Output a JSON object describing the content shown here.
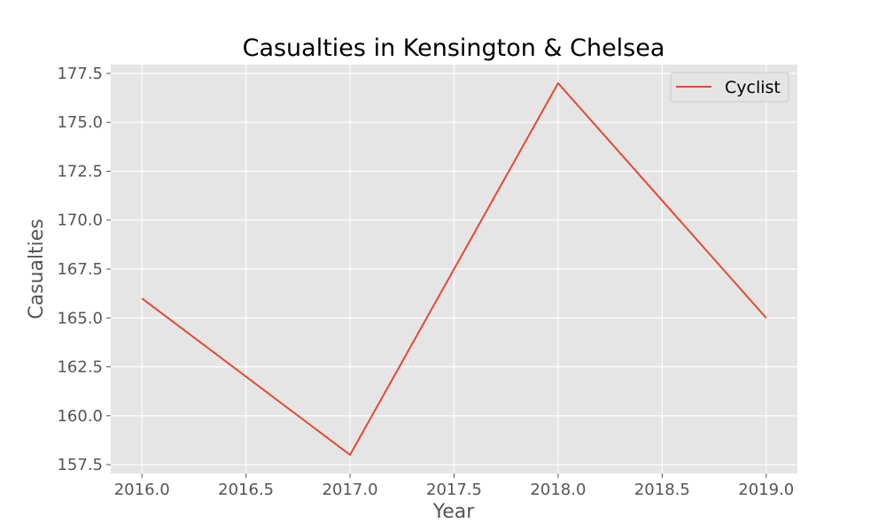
{
  "chart_data": {
    "type": "line",
    "title": "Casualties in Kensington & Chelsea",
    "xlabel": "Year",
    "ylabel": "Casualties",
    "x": [
      2016,
      2017,
      2018,
      2019
    ],
    "series": [
      {
        "name": "Cyclist",
        "values": [
          166,
          158,
          177,
          165
        ],
        "color": "#E24A33"
      }
    ],
    "xlim": [
      2015.85,
      2019.15
    ],
    "ylim": [
      157.05,
      177.95
    ],
    "x_ticks": [
      2016.0,
      2016.5,
      2017.0,
      2017.5,
      2018.0,
      2018.5,
      2019.0
    ],
    "x_tick_labels": [
      "2016.0",
      "2016.5",
      "2017.0",
      "2017.5",
      "2018.0",
      "2018.5",
      "2019.0"
    ],
    "y_ticks": [
      157.5,
      160.0,
      162.5,
      165.0,
      167.5,
      170.0,
      172.5,
      175.0,
      177.5
    ],
    "y_tick_labels": [
      "157.5",
      "160.0",
      "162.5",
      "165.0",
      "167.5",
      "170.0",
      "172.5",
      "175.0",
      "177.5"
    ],
    "grid": true,
    "legend_position": "top-right",
    "colors": {
      "plot_background": "#E5E5E5",
      "grid": "#FFFFFF",
      "text": "#555555"
    }
  }
}
